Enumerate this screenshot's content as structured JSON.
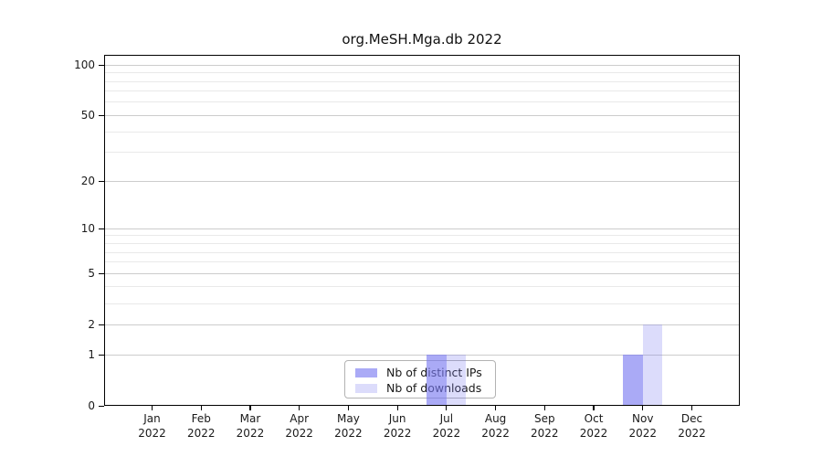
{
  "figure": {
    "title": "org.MeSH.Mga.db 2022"
  },
  "chart_data": {
    "type": "bar",
    "title": "org.MeSH.Mga.db 2022",
    "categories": [
      "Jan",
      "Feb",
      "Mar",
      "Apr",
      "May",
      "Jun",
      "Jul",
      "Aug",
      "Sep",
      "Oct",
      "Nov",
      "Dec"
    ],
    "x_year_label": "2022",
    "series": [
      {
        "name": "Nb of distinct IPs",
        "color": "rgba(120,120,240,0.63)",
        "values": [
          0,
          0,
          0,
          0,
          0,
          0,
          1,
          0,
          0,
          0,
          1,
          0
        ]
      },
      {
        "name": "Nb of downloads",
        "color": "rgba(120,120,240,0.26)",
        "values": [
          0,
          0,
          0,
          0,
          0,
          0,
          1,
          0,
          0,
          0,
          2,
          0
        ]
      }
    ],
    "xlabel": "",
    "ylabel": "",
    "yscale": "log1p",
    "ylim": [
      0,
      115
    ],
    "yticks": [
      0,
      1,
      2,
      5,
      10,
      20,
      50,
      100
    ],
    "minor_yticks": [
      3,
      4,
      6,
      7,
      8,
      9,
      30,
      40,
      60,
      70,
      80,
      90
    ],
    "grid": "horizontal-only",
    "legend_position": "inside-bottom-center",
    "colors": {
      "frame": "#000000",
      "major_grid": "#cccccc",
      "minor_grid": "#e9e9e9",
      "text": "#1a1a1a"
    }
  }
}
